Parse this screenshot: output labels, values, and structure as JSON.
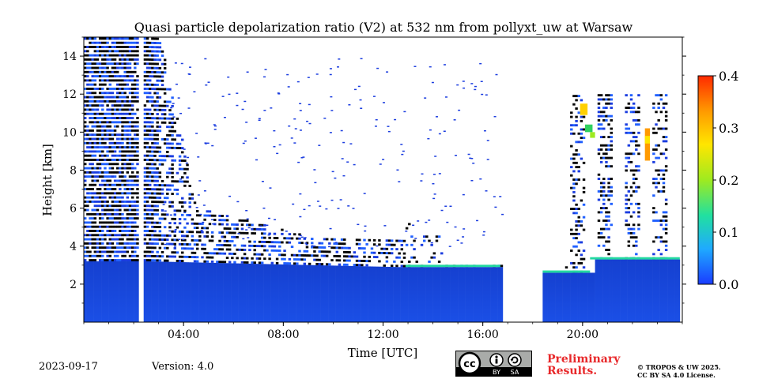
{
  "chart_data": {
    "type": "heatmap",
    "title": "Quasi particle depolarization ratio (V2) at 532 nm from pollyxt_uw at Warsaw",
    "xlabel": "Time [UTC]",
    "ylabel": "Height [km]",
    "x_range_hours": [
      0,
      24
    ],
    "ylim": [
      0,
      15
    ],
    "x_ticks": [
      {
        "hour": 4,
        "label": "04:00"
      },
      {
        "hour": 8,
        "label": "08:00"
      },
      {
        "hour": 12,
        "label": "12:00"
      },
      {
        "hour": 16,
        "label": "16:00"
      },
      {
        "hour": 20,
        "label": "20:00"
      }
    ],
    "y_ticks": [
      {
        "km": 2,
        "label": "2"
      },
      {
        "km": 4,
        "label": "4"
      },
      {
        "km": 6,
        "label": "6"
      },
      {
        "km": 8,
        "label": "8"
      },
      {
        "km": 10,
        "label": "10"
      },
      {
        "km": 12,
        "label": "12"
      },
      {
        "km": 14,
        "label": "14"
      }
    ],
    "colorbar": {
      "range": [
        0,
        0.4
      ],
      "ticks": [
        {
          "value": 0.0,
          "label": "0.0"
        },
        {
          "value": 0.1,
          "label": "0.1"
        },
        {
          "value": 0.2,
          "label": "0.2"
        },
        {
          "value": 0.3,
          "label": "0.3"
        },
        {
          "value": 0.4,
          "label": "0.4"
        }
      ],
      "colors": [
        "#1a3cff",
        "#1faaff",
        "#21e0a0",
        "#9eea20",
        "#ffe600",
        "#ff9a00",
        "#ff2a00"
      ]
    },
    "no_data_gaps_hours": [
      [
        2.18,
        2.42
      ],
      [
        16.75,
        18.35
      ]
    ],
    "regions": [
      {
        "name": "boundary layer",
        "from_hour": 0,
        "to_hour": 23.9,
        "top_km": 3.0,
        "depol": 0.02
      },
      {
        "name": "noisy upper layer before 03:00",
        "from_hour": 0,
        "to_hour": 3.0,
        "top_km": 15.0,
        "depol": 0.0
      },
      {
        "name": "cirrus after 20:00",
        "from_hour": 19.8,
        "to_hour": 23.9,
        "base_km": 3.3,
        "top_km": 11.5,
        "depol": 0.3
      }
    ]
  },
  "footer": {
    "date": "2023-09-17",
    "version": "Version: 4.0",
    "preliminary_line1": "Preliminary",
    "preliminary_line2": "Results.",
    "copyright_line1": "© TROPOS & UW 2025.",
    "copyright_line2": "CC BY SA 4.0 License.",
    "badge_by": "BY",
    "badge_sa": "SA",
    "badge_icon": "creative-commons-icon"
  },
  "colors": {
    "boundary_layer": "#1a4fe0",
    "noise": "#0a1a55",
    "prelim_text": "#e8282a",
    "badge_bg": "#a9aba9"
  }
}
